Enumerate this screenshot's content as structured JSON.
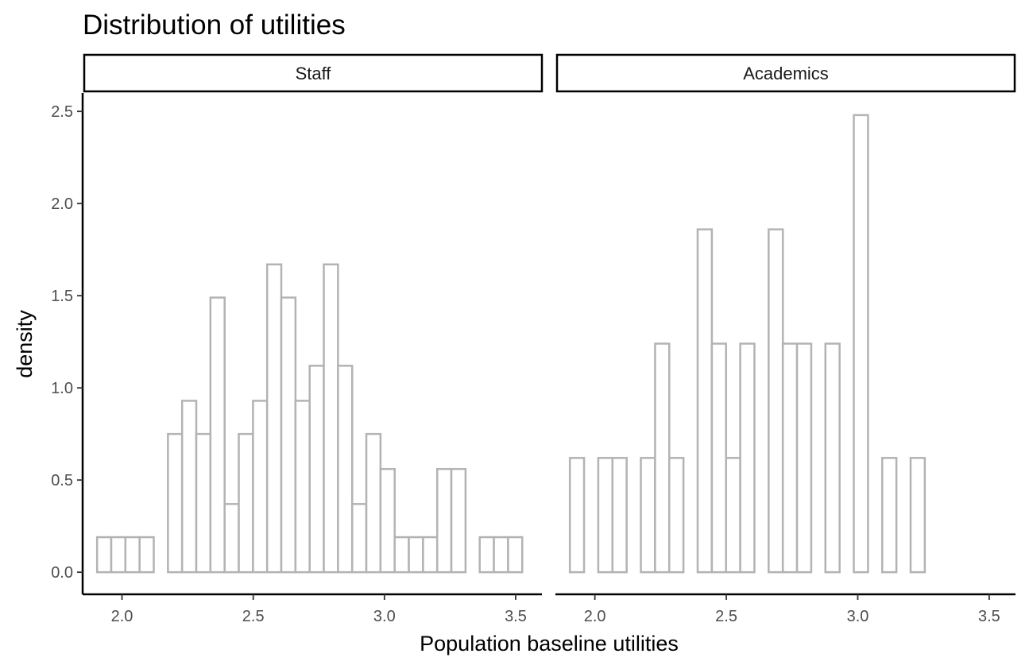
{
  "chart_data": {
    "type": "bar",
    "subtype": "histogram-faceted",
    "title": "Distribution of utilities",
    "xlabel": "Population baseline utilities",
    "ylabel": "density",
    "xlim": [
      1.85,
      3.6
    ],
    "ylim": [
      -0.12,
      2.6
    ],
    "xticks": [
      2.0,
      2.5,
      3.0,
      3.5
    ],
    "xtick_labels": [
      "2.0",
      "2.5",
      "3.0",
      "3.5"
    ],
    "yticks": [
      0.0,
      0.5,
      1.0,
      1.5,
      2.0,
      2.5
    ],
    "ytick_labels": [
      "0.0",
      "0.5",
      "1.0",
      "1.5",
      "2.0",
      "2.5"
    ],
    "bin_start": 1.905,
    "bin_width": 0.054,
    "bar_color": "#b3b3b3",
    "fill_color": "#ffffff",
    "grid": false,
    "panels": [
      {
        "facet_label": "Staff",
        "values": [
          0.19,
          0.19,
          0.19,
          0.19,
          0.0,
          0.75,
          0.93,
          0.75,
          1.49,
          0.37,
          0.75,
          0.93,
          1.67,
          1.49,
          0.93,
          1.12,
          1.67,
          1.12,
          0.37,
          0.75,
          0.56,
          0.19,
          0.19,
          0.19,
          0.56,
          0.56,
          0.0,
          0.19,
          0.19,
          0.19
        ]
      },
      {
        "facet_label": "Academics",
        "values": [
          0.62,
          0.0,
          0.62,
          0.62,
          0.0,
          0.62,
          1.24,
          0.62,
          0.0,
          1.86,
          1.24,
          0.62,
          1.24,
          0.0,
          1.86,
          1.24,
          1.24,
          0.0,
          1.24,
          0.0,
          2.48,
          0.0,
          0.62,
          0.0,
          0.62,
          0.0,
          0.0,
          0.0,
          0.0,
          0.0
        ]
      }
    ]
  }
}
